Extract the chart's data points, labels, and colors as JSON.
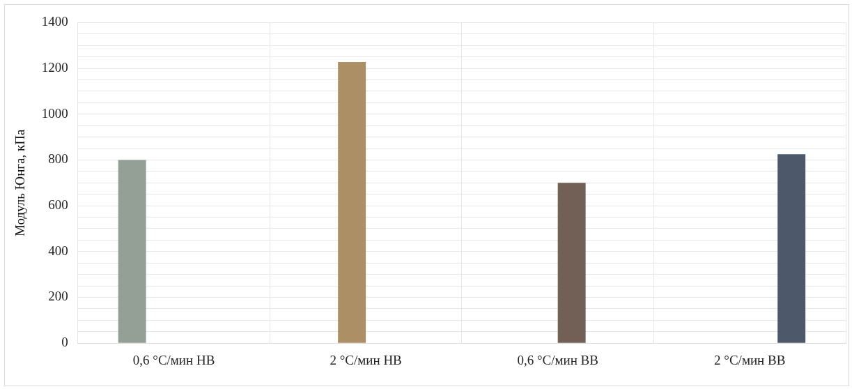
{
  "chart_data": {
    "type": "bar",
    "ylabel": "Модуль Юнга, кПа",
    "categories": [
      "0,6 °C/мин НВ",
      "2 °C/мин НВ",
      "0,6 °C/мин ВВ",
      "2 °C/мин ВВ"
    ],
    "series": [
      {
        "color": "#949f95",
        "values": [
          800,
          null,
          null,
          null
        ]
      },
      {
        "color": "#ad8f66",
        "values": [
          null,
          1228,
          null,
          null
        ]
      },
      {
        "color": "#725f55",
        "values": [
          null,
          null,
          700,
          null
        ]
      },
      {
        "color": "#4d596a",
        "values": [
          null,
          null,
          null,
          825
        ]
      }
    ],
    "ylim": [
      0,
      1400
    ],
    "yticks": [
      0,
      {
        "value": 50,
        "label": null
      },
      {
        "value": 100,
        "label": null
      },
      {
        "value": 150,
        "label": null
      },
      200,
      {
        "value": 250,
        "label": null
      },
      {
        "value": 300,
        "label": null
      },
      {
        "value": 350,
        "label": null
      },
      400,
      {
        "value": 450,
        "label": null
      },
      {
        "value": 500,
        "label": null
      },
      {
        "value": 550,
        "label": null
      },
      600,
      {
        "value": 650,
        "label": null
      },
      {
        "value": 700,
        "label": null
      },
      {
        "value": 750,
        "label": null
      },
      800,
      {
        "value": 850,
        "label": null
      },
      {
        "value": 900,
        "label": null
      },
      {
        "value": 950,
        "label": null
      },
      1000,
      {
        "value": 1050,
        "label": null
      },
      {
        "value": 1100,
        "label": null
      },
      {
        "value": 1150,
        "label": null
      },
      1200,
      {
        "value": 1250,
        "label": null
      },
      {
        "value": 1300,
        "label": null
      },
      {
        "value": 1350,
        "label": null
      },
      1400
    ],
    "grid": true,
    "legend": false
  }
}
